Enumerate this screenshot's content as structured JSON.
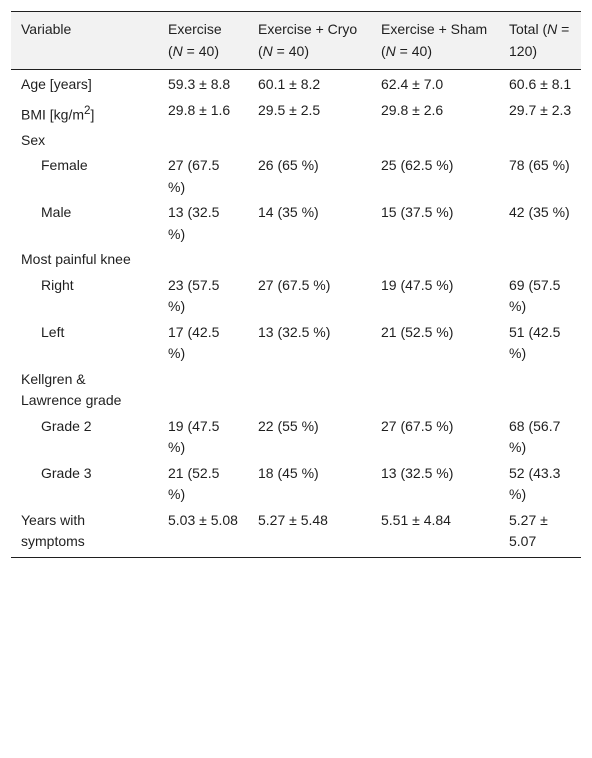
{
  "table": {
    "headers": {
      "variable": "Variable",
      "exercise_label": "Exercise",
      "exercise_n_pre": "(",
      "exercise_n_var": "N",
      "exercise_n_post": " = 40)",
      "cryo_label": "Exercise + Cryo (",
      "cryo_n_var": "N",
      "cryo_n_post": " = 40)",
      "sham_label": "Exercise + Sham (",
      "sham_n_var": "N",
      "sham_n_post": " = 40)",
      "total_label": "Total (",
      "total_n_var": "N",
      "total_n_post": " = 120)"
    },
    "rows": [
      {
        "label": "Age [years]",
        "ex": "59.3 ± 8.8",
        "cryo": "60.1 ± 8.2",
        "sham": "62.4 ± 7.0",
        "total": "60.6 ± 8.1"
      },
      {
        "label_pre": "BMI [kg/m",
        "label_sup": "2",
        "label_post": "]",
        "ex": "29.8 ± 1.6",
        "cryo": "29.5 ± 2.5",
        "sham": "29.8 ± 2.6",
        "total": "29.7 ± 2.3"
      },
      {
        "label": "Sex"
      },
      {
        "label": "Female",
        "ex": "27 (67.5 %)",
        "cryo": "26 (65 %)",
        "sham": "25 (62.5 %)",
        "total": "78 (65 %)"
      },
      {
        "label": "Male",
        "ex": "13 (32.5 %)",
        "cryo": "14 (35 %)",
        "sham": "15 (37.5 %)",
        "total": "42 (35 %)"
      },
      {
        "label": "Most painful knee"
      },
      {
        "label": "Right",
        "ex": "23 (57.5 %)",
        "cryo": "27 (67.5 %)",
        "sham": "19 (47.5 %)",
        "total": "69 (57.5 %)"
      },
      {
        "label": "Left",
        "ex": "17 (42.5 %)",
        "cryo": "13 (32.5 %)",
        "sham": "21 (52.5 %)",
        "total": "51 (42.5 %)"
      },
      {
        "label": "Kellgren & Lawrence grade"
      },
      {
        "label": "Grade 2",
        "ex": "19 (47.5 %)",
        "cryo": "22 (55 %)",
        "sham": "27 (67.5 %)",
        "total": "68 (56.7 %)"
      },
      {
        "label": "Grade 3",
        "ex": "21 (52.5 %)",
        "cryo": "18 (45 %)",
        "sham": "13 (32.5 %)",
        "total": "52 (43.3 %)"
      },
      {
        "label": "Years with symptoms",
        "ex": "5.03 ± 5.08",
        "cryo": "5.27 ± 5.48",
        "sham": "5.51 ± 4.84",
        "total": "5.27 ± 5.07"
      }
    ]
  }
}
